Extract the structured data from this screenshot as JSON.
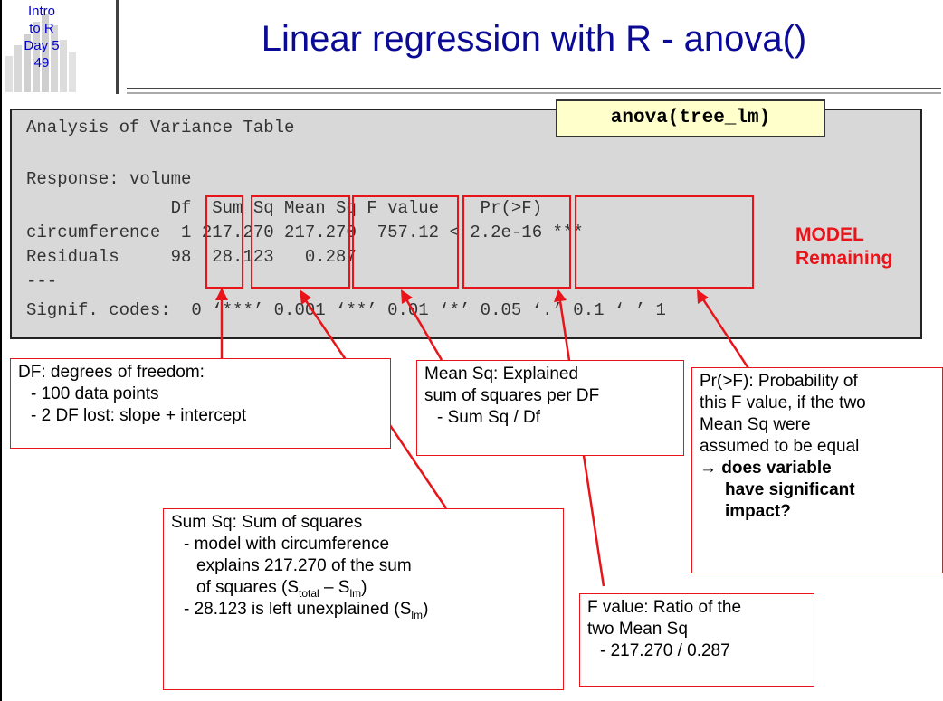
{
  "badge": {
    "lines": [
      "Intro",
      "to R",
      "Day 5",
      "49"
    ]
  },
  "title": "Linear regression with R - anova()",
  "command": "anova(tree_lm)",
  "console": {
    "line1": "Analysis of Variance Table",
    "line2": "Response: volume",
    "line3": "              Df  Sum Sq Mean Sq F value    Pr(>F)    ",
    "line4": "circumference  1 217.270 217.270  757.12 < 2.2e-16 ***",
    "line5": "Residuals     98  28.123   0.287                      ",
    "line6": "---",
    "line7": "Signif. codes:  0 ‘***’ 0.001 ‘**’ 0.01 ‘*’ 0.05 ‘.’ 0.1 ‘ ’ 1"
  },
  "row_labels": {
    "model": "MODEL",
    "remaining": "Remaining"
  },
  "callouts": {
    "df": {
      "l1": "DF: degrees of freedom:",
      "l2": "- 100 data points",
      "l3": "- 2 DF lost: slope + intercept"
    },
    "meansq": {
      "l1": "Mean Sq: Explained",
      "l2": "sum of squares per DF",
      "l3": "- Sum Sq / Df"
    },
    "pr": {
      "l1": "Pr(>F): Probability of",
      "l2": "this F value, if the two",
      "l3": "Mean Sq were",
      "l4": "assumed to be equal",
      "l5": "→ does variable",
      "l6": "have significant",
      "l7": "impact?"
    },
    "sumsq": {
      "l1": "Sum Sq: Sum of squares",
      "l2": "- model with circumference",
      "l3": "explains 217.270 of the sum",
      "l4_pre": "of squares (S",
      "l4_sub1": "total",
      "l4_mid": " – S",
      "l4_sub2": "lm",
      "l4_post": ")",
      "l5_pre": "- 28.123 is left unexplained (S",
      "l5_sub": "lm",
      "l5_post": ")"
    },
    "fvalue": {
      "l1": "F value: Ratio of the",
      "l2": "two Mean Sq",
      "l3": "- 217.270 / 0.287"
    }
  },
  "colors": {
    "title": "#0a0a96",
    "accent": "#e8141a",
    "console_bg": "#d8d8d8",
    "command_bg": "#ffffcc"
  }
}
